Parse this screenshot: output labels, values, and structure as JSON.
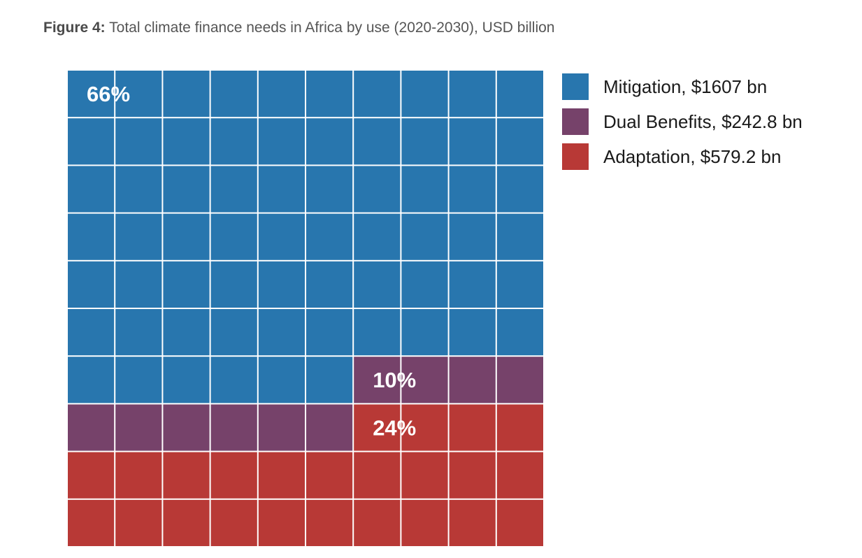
{
  "caption": {
    "label": "Figure 4:",
    "text": " Total climate finance needs in Africa by use (2020-2030), USD billion"
  },
  "chart_data": {
    "type": "waffle",
    "grid": {
      "rows": 10,
      "cols": 10
    },
    "categories": [
      {
        "name": "Mitigation",
        "value_bn": 1607,
        "percent": 66,
        "cells": 66,
        "color": "#2876ae",
        "legend_label": "Mitigation, $1607 bn",
        "data_label": "66%"
      },
      {
        "name": "Dual Benefits",
        "value_bn": 242.8,
        "percent": 10,
        "cells": 10,
        "color": "#76426a",
        "legend_label": "Dual Benefits, $242.8 bn",
        "data_label": "10%"
      },
      {
        "name": "Adaptation",
        "value_bn": 579.2,
        "percent": 24,
        "cells": 24,
        "color": "#b83936",
        "legend_label": "Adaptation, $579.2 bn",
        "data_label": "24%"
      }
    ],
    "legend_position": "top-right"
  }
}
